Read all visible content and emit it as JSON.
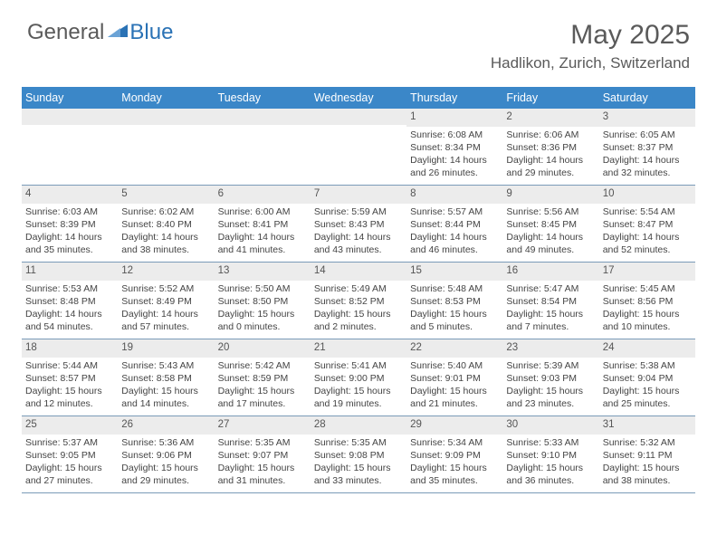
{
  "logo": {
    "general": "General",
    "blue": "Blue"
  },
  "title": "May 2025",
  "location": "Hadlikon, Zurich, Switzerland",
  "dayNames": [
    "Sunday",
    "Monday",
    "Tuesday",
    "Wednesday",
    "Thursday",
    "Friday",
    "Saturday"
  ],
  "colors": {
    "headerBg": "#3b87c8",
    "headerText": "#ffffff",
    "dayNumBg": "#ececec",
    "border": "#7a9bb8",
    "logoBlue": "#2a72b5",
    "textGray": "#5a5a5a"
  },
  "weeks": [
    [
      null,
      null,
      null,
      null,
      {
        "n": "1",
        "sr": "Sunrise: 6:08 AM",
        "ss": "Sunset: 8:34 PM",
        "dl": "Daylight: 14 hours and 26 minutes."
      },
      {
        "n": "2",
        "sr": "Sunrise: 6:06 AM",
        "ss": "Sunset: 8:36 PM",
        "dl": "Daylight: 14 hours and 29 minutes."
      },
      {
        "n": "3",
        "sr": "Sunrise: 6:05 AM",
        "ss": "Sunset: 8:37 PM",
        "dl": "Daylight: 14 hours and 32 minutes."
      }
    ],
    [
      {
        "n": "4",
        "sr": "Sunrise: 6:03 AM",
        "ss": "Sunset: 8:39 PM",
        "dl": "Daylight: 14 hours and 35 minutes."
      },
      {
        "n": "5",
        "sr": "Sunrise: 6:02 AM",
        "ss": "Sunset: 8:40 PM",
        "dl": "Daylight: 14 hours and 38 minutes."
      },
      {
        "n": "6",
        "sr": "Sunrise: 6:00 AM",
        "ss": "Sunset: 8:41 PM",
        "dl": "Daylight: 14 hours and 41 minutes."
      },
      {
        "n": "7",
        "sr": "Sunrise: 5:59 AM",
        "ss": "Sunset: 8:43 PM",
        "dl": "Daylight: 14 hours and 43 minutes."
      },
      {
        "n": "8",
        "sr": "Sunrise: 5:57 AM",
        "ss": "Sunset: 8:44 PM",
        "dl": "Daylight: 14 hours and 46 minutes."
      },
      {
        "n": "9",
        "sr": "Sunrise: 5:56 AM",
        "ss": "Sunset: 8:45 PM",
        "dl": "Daylight: 14 hours and 49 minutes."
      },
      {
        "n": "10",
        "sr": "Sunrise: 5:54 AM",
        "ss": "Sunset: 8:47 PM",
        "dl": "Daylight: 14 hours and 52 minutes."
      }
    ],
    [
      {
        "n": "11",
        "sr": "Sunrise: 5:53 AM",
        "ss": "Sunset: 8:48 PM",
        "dl": "Daylight: 14 hours and 54 minutes."
      },
      {
        "n": "12",
        "sr": "Sunrise: 5:52 AM",
        "ss": "Sunset: 8:49 PM",
        "dl": "Daylight: 14 hours and 57 minutes."
      },
      {
        "n": "13",
        "sr": "Sunrise: 5:50 AM",
        "ss": "Sunset: 8:50 PM",
        "dl": "Daylight: 15 hours and 0 minutes."
      },
      {
        "n": "14",
        "sr": "Sunrise: 5:49 AM",
        "ss": "Sunset: 8:52 PM",
        "dl": "Daylight: 15 hours and 2 minutes."
      },
      {
        "n": "15",
        "sr": "Sunrise: 5:48 AM",
        "ss": "Sunset: 8:53 PM",
        "dl": "Daylight: 15 hours and 5 minutes."
      },
      {
        "n": "16",
        "sr": "Sunrise: 5:47 AM",
        "ss": "Sunset: 8:54 PM",
        "dl": "Daylight: 15 hours and 7 minutes."
      },
      {
        "n": "17",
        "sr": "Sunrise: 5:45 AM",
        "ss": "Sunset: 8:56 PM",
        "dl": "Daylight: 15 hours and 10 minutes."
      }
    ],
    [
      {
        "n": "18",
        "sr": "Sunrise: 5:44 AM",
        "ss": "Sunset: 8:57 PM",
        "dl": "Daylight: 15 hours and 12 minutes."
      },
      {
        "n": "19",
        "sr": "Sunrise: 5:43 AM",
        "ss": "Sunset: 8:58 PM",
        "dl": "Daylight: 15 hours and 14 minutes."
      },
      {
        "n": "20",
        "sr": "Sunrise: 5:42 AM",
        "ss": "Sunset: 8:59 PM",
        "dl": "Daylight: 15 hours and 17 minutes."
      },
      {
        "n": "21",
        "sr": "Sunrise: 5:41 AM",
        "ss": "Sunset: 9:00 PM",
        "dl": "Daylight: 15 hours and 19 minutes."
      },
      {
        "n": "22",
        "sr": "Sunrise: 5:40 AM",
        "ss": "Sunset: 9:01 PM",
        "dl": "Daylight: 15 hours and 21 minutes."
      },
      {
        "n": "23",
        "sr": "Sunrise: 5:39 AM",
        "ss": "Sunset: 9:03 PM",
        "dl": "Daylight: 15 hours and 23 minutes."
      },
      {
        "n": "24",
        "sr": "Sunrise: 5:38 AM",
        "ss": "Sunset: 9:04 PM",
        "dl": "Daylight: 15 hours and 25 minutes."
      }
    ],
    [
      {
        "n": "25",
        "sr": "Sunrise: 5:37 AM",
        "ss": "Sunset: 9:05 PM",
        "dl": "Daylight: 15 hours and 27 minutes."
      },
      {
        "n": "26",
        "sr": "Sunrise: 5:36 AM",
        "ss": "Sunset: 9:06 PM",
        "dl": "Daylight: 15 hours and 29 minutes."
      },
      {
        "n": "27",
        "sr": "Sunrise: 5:35 AM",
        "ss": "Sunset: 9:07 PM",
        "dl": "Daylight: 15 hours and 31 minutes."
      },
      {
        "n": "28",
        "sr": "Sunrise: 5:35 AM",
        "ss": "Sunset: 9:08 PM",
        "dl": "Daylight: 15 hours and 33 minutes."
      },
      {
        "n": "29",
        "sr": "Sunrise: 5:34 AM",
        "ss": "Sunset: 9:09 PM",
        "dl": "Daylight: 15 hours and 35 minutes."
      },
      {
        "n": "30",
        "sr": "Sunrise: 5:33 AM",
        "ss": "Sunset: 9:10 PM",
        "dl": "Daylight: 15 hours and 36 minutes."
      },
      {
        "n": "31",
        "sr": "Sunrise: 5:32 AM",
        "ss": "Sunset: 9:11 PM",
        "dl": "Daylight: 15 hours and 38 minutes."
      }
    ]
  ]
}
